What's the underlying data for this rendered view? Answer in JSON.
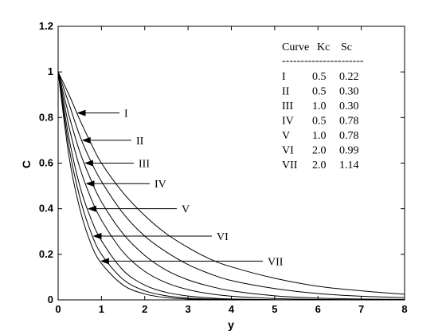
{
  "chart_data": {
    "type": "line",
    "title": "",
    "xlabel": "y",
    "ylabel": "C",
    "xlim": [
      0,
      8
    ],
    "ylim": [
      0,
      1.2
    ],
    "x_ticks": [
      "0",
      "1",
      "2",
      "3",
      "4",
      "5",
      "6",
      "7",
      "8"
    ],
    "y_ticks": [
      "0",
      "0.2",
      "0.4",
      "0.6",
      "0.8",
      "1",
      "1.2"
    ],
    "grid": false,
    "legend": {
      "placement": "top-right",
      "header": [
        "Curve",
        "Kc",
        "Sc"
      ],
      "separator": "----------------------",
      "rows": [
        [
          "I",
          "0.5",
          "0.22"
        ],
        [
          "II",
          "0.5",
          "0.30"
        ],
        [
          "III",
          "1.0",
          "0.30"
        ],
        [
          "IV",
          "0.5",
          "0.78"
        ],
        [
          "V",
          "1.0",
          "0.78"
        ],
        [
          "VI",
          "2.0",
          "0.99"
        ],
        [
          "VII",
          "2.0",
          "1.14"
        ]
      ]
    },
    "x": [
      0,
      0.25,
      0.5,
      0.75,
      1,
      1.5,
      2,
      2.5,
      3,
      3.5,
      4,
      5,
      6,
      7,
      8
    ],
    "series": [
      {
        "label": "I",
        "annotation_y": 0.82,
        "values": [
          1.0,
          0.9,
          0.79,
          0.69,
          0.6,
          0.47,
          0.37,
          0.29,
          0.23,
          0.18,
          0.145,
          0.095,
          0.06,
          0.04,
          0.025
        ]
      },
      {
        "label": "II",
        "annotation_y": 0.7,
        "values": [
          1.0,
          0.86,
          0.72,
          0.61,
          0.52,
          0.38,
          0.28,
          0.21,
          0.155,
          0.115,
          0.085,
          0.05,
          0.028,
          0.016,
          0.01
        ]
      },
      {
        "label": "III",
        "annotation_y": 0.6,
        "values": [
          1.0,
          0.81,
          0.65,
          0.53,
          0.43,
          0.29,
          0.195,
          0.13,
          0.088,
          0.06,
          0.04,
          0.018,
          0.008,
          0.004,
          0.002
        ]
      },
      {
        "label": "IV",
        "annotation_y": 0.51,
        "values": [
          1.0,
          0.76,
          0.58,
          0.45,
          0.35,
          0.21,
          0.125,
          0.075,
          0.045,
          0.027,
          0.016,
          0.006,
          0.002,
          0.001,
          0.0
        ]
      },
      {
        "label": "V",
        "annotation_y": 0.4,
        "values": [
          1.0,
          0.71,
          0.5,
          0.36,
          0.26,
          0.13,
          0.065,
          0.033,
          0.017,
          0.009,
          0.004,
          0.001,
          0.0,
          0.0,
          0.0
        ]
      },
      {
        "label": "VI",
        "annotation_y": 0.28,
        "values": [
          1.0,
          0.67,
          0.45,
          0.3,
          0.2,
          0.09,
          0.04,
          0.018,
          0.008,
          0.004,
          0.002,
          0.0,
          0.0,
          0.0,
          0.0
        ]
      },
      {
        "label": "VII",
        "annotation_y": 0.17,
        "values": [
          1.0,
          0.63,
          0.4,
          0.25,
          0.16,
          0.065,
          0.026,
          0.01,
          0.004,
          0.002,
          0.001,
          0.0,
          0.0,
          0.0,
          0.0
        ]
      }
    ]
  }
}
